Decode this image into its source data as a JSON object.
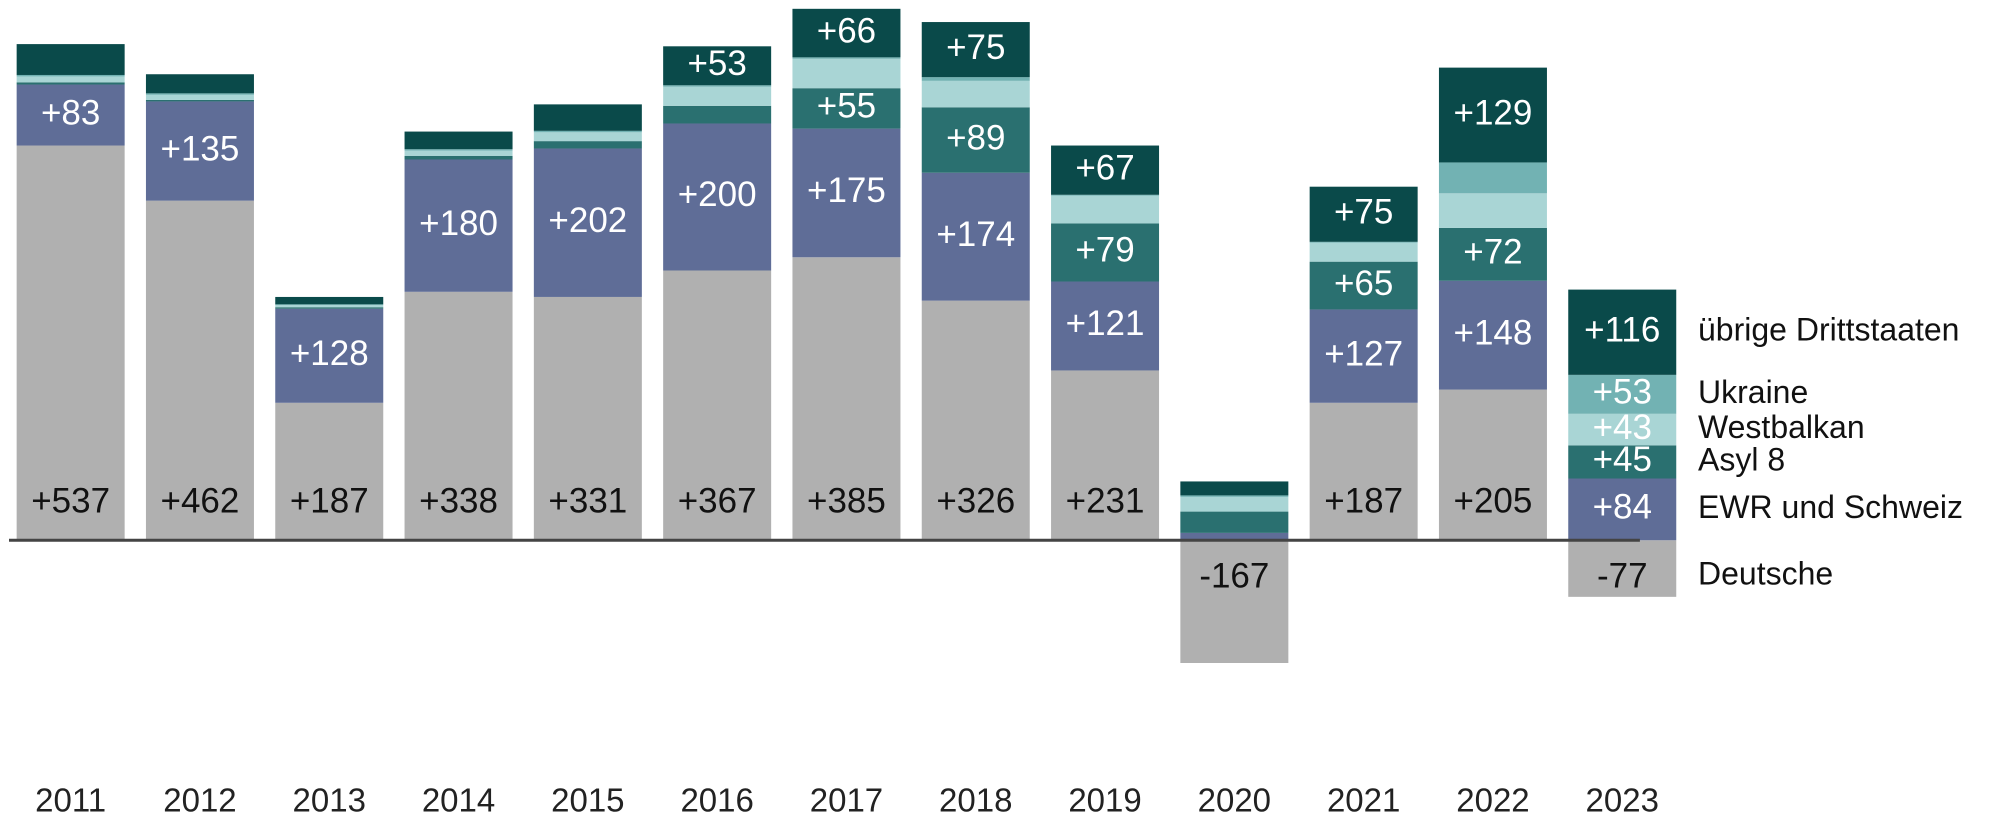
{
  "chart_data": {
    "type": "bar",
    "stacked": true,
    "categories": [
      "2011",
      "2012",
      "2013",
      "2014",
      "2015",
      "2016",
      "2017",
      "2018",
      "2019",
      "2020",
      "2021",
      "2022",
      "2023"
    ],
    "series": [
      {
        "name": "Deutsche",
        "color": "#b0b0b0",
        "values": [
          537,
          462,
          187,
          338,
          331,
          367,
          385,
          326,
          231,
          -167,
          187,
          205,
          -77
        ],
        "value_labels": [
          "+537",
          "+462",
          "+187",
          "+338",
          "+331",
          "+367",
          "+385",
          "+326",
          "+231",
          "-167",
          "+187",
          "+205",
          "-77"
        ]
      },
      {
        "name": "EWR und Schweiz",
        "color": "#5f6d97",
        "values": [
          83,
          135,
          128,
          180,
          202,
          200,
          175,
          174,
          121,
          10,
          127,
          148,
          84
        ],
        "value_labels": [
          "+83",
          "+135",
          "+128",
          "+180",
          "+202",
          "+200",
          "+175",
          "+174",
          "+121",
          null,
          "+127",
          "+148",
          "+84"
        ]
      },
      {
        "name": "Asyl 8",
        "color": "#2a7070",
        "values": [
          3,
          2,
          2,
          5,
          10,
          24,
          55,
          89,
          79,
          29,
          65,
          72,
          45
        ],
        "value_labels": [
          null,
          null,
          null,
          null,
          null,
          null,
          "+55",
          "+89",
          "+79",
          null,
          "+65",
          "+72",
          "+45"
        ]
      },
      {
        "name": "Westbalkan",
        "color": "#a9d5d5",
        "values": [
          8,
          7,
          3,
          7,
          12,
          26,
          40,
          36,
          38,
          20,
          26,
          47,
          43
        ],
        "value_labels": [
          null,
          null,
          null,
          null,
          null,
          null,
          null,
          null,
          null,
          null,
          null,
          null,
          "+43"
        ]
      },
      {
        "name": "Ukraine",
        "color": "#72b2b3",
        "values": [
          2,
          2,
          1,
          2,
          2,
          2,
          2,
          5,
          1,
          2,
          1,
          42,
          53
        ],
        "value_labels": [
          null,
          null,
          null,
          null,
          null,
          null,
          null,
          null,
          null,
          null,
          null,
          null,
          "+53"
        ]
      },
      {
        "name": "übrige Drittstaaten",
        "color": "#0a4a4a",
        "values": [
          42,
          26,
          10,
          24,
          36,
          53,
          66,
          75,
          67,
          19,
          75,
          129,
          116
        ],
        "value_labels": [
          null,
          null,
          null,
          null,
          null,
          "+53",
          "+66",
          "+75",
          "+67",
          null,
          "+75",
          "+129",
          "+116"
        ]
      }
    ],
    "ylim": [
      -250,
      735
    ]
  }
}
